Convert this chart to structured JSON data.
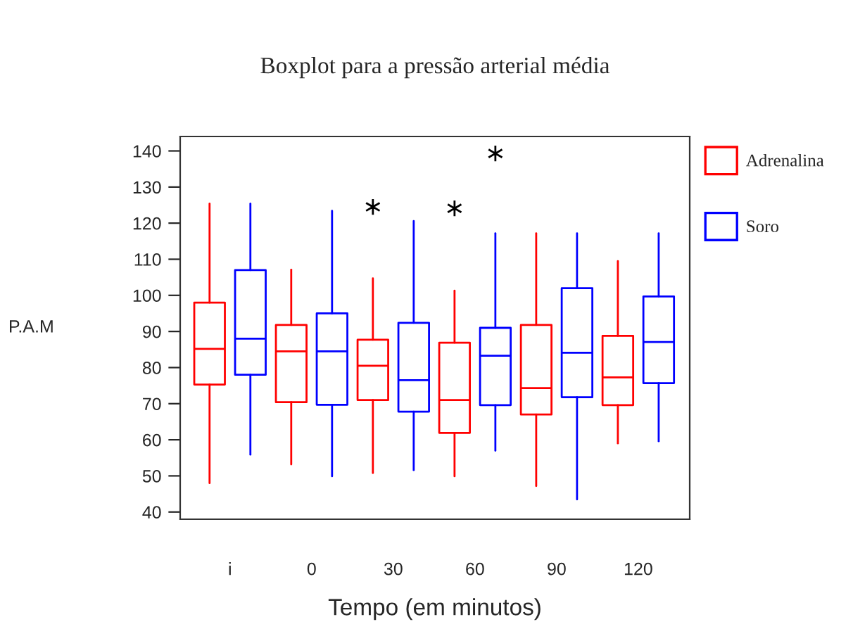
{
  "chart_data": {
    "type": "box",
    "title": "Boxplot para a pressão arterial média",
    "xlabel": "Tempo (em minutos)",
    "ylabel": "P.A.M",
    "categories": [
      "i",
      "0",
      "30",
      "60",
      "90",
      "120"
    ],
    "series": [
      {
        "name": "Adrenalina",
        "color": "#ff0000",
        "boxes": [
          {
            "low": 48,
            "q1": 75.3,
            "median": 85.2,
            "q3": 98,
            "high": 125.4
          },
          {
            "low": 53.2,
            "q1": 70.4,
            "median": 84.5,
            "q3": 91.8,
            "high": 107.1
          },
          {
            "low": 50.8,
            "q1": 71,
            "median": 80.5,
            "q3": 87.7,
            "high": 104.7,
            "outliers": [
              124.5
            ]
          },
          {
            "low": 49.9,
            "q1": 61.9,
            "median": 71,
            "q3": 86.9,
            "high": 101.3,
            "outliers": [
              124.1
            ]
          },
          {
            "low": 47.2,
            "q1": 67,
            "median": 74.3,
            "q3": 91.8,
            "high": 117.2
          },
          {
            "low": 59,
            "q1": 69.6,
            "median": 77.3,
            "q3": 88.8,
            "high": 109.5
          }
        ]
      },
      {
        "name": "Soro",
        "color": "#0000ff",
        "boxes": [
          {
            "low": 55.9,
            "q1": 78,
            "median": 88,
            "q3": 107,
            "high": 125.4
          },
          {
            "low": 49.9,
            "q1": 69.7,
            "median": 84.5,
            "q3": 95,
            "high": 123.4
          },
          {
            "low": 51.6,
            "q1": 67.8,
            "median": 76.5,
            "q3": 92.4,
            "high": 120.6
          },
          {
            "low": 57,
            "q1": 69.6,
            "median": 83.3,
            "q3": 91,
            "high": 117.2,
            "outliers": [
              139.3
            ]
          },
          {
            "low": 43.5,
            "q1": 71.8,
            "median": 84.1,
            "q3": 102,
            "high": 117.2
          },
          {
            "low": 59.6,
            "q1": 75.7,
            "median": 87.1,
            "q3": 99.7,
            "high": 117.2
          }
        ]
      }
    ],
    "ylim": [
      38,
      144
    ],
    "yticks": [
      40,
      50,
      60,
      70,
      80,
      90,
      100,
      110,
      120,
      130,
      140
    ],
    "grid": false,
    "legend": "right"
  }
}
